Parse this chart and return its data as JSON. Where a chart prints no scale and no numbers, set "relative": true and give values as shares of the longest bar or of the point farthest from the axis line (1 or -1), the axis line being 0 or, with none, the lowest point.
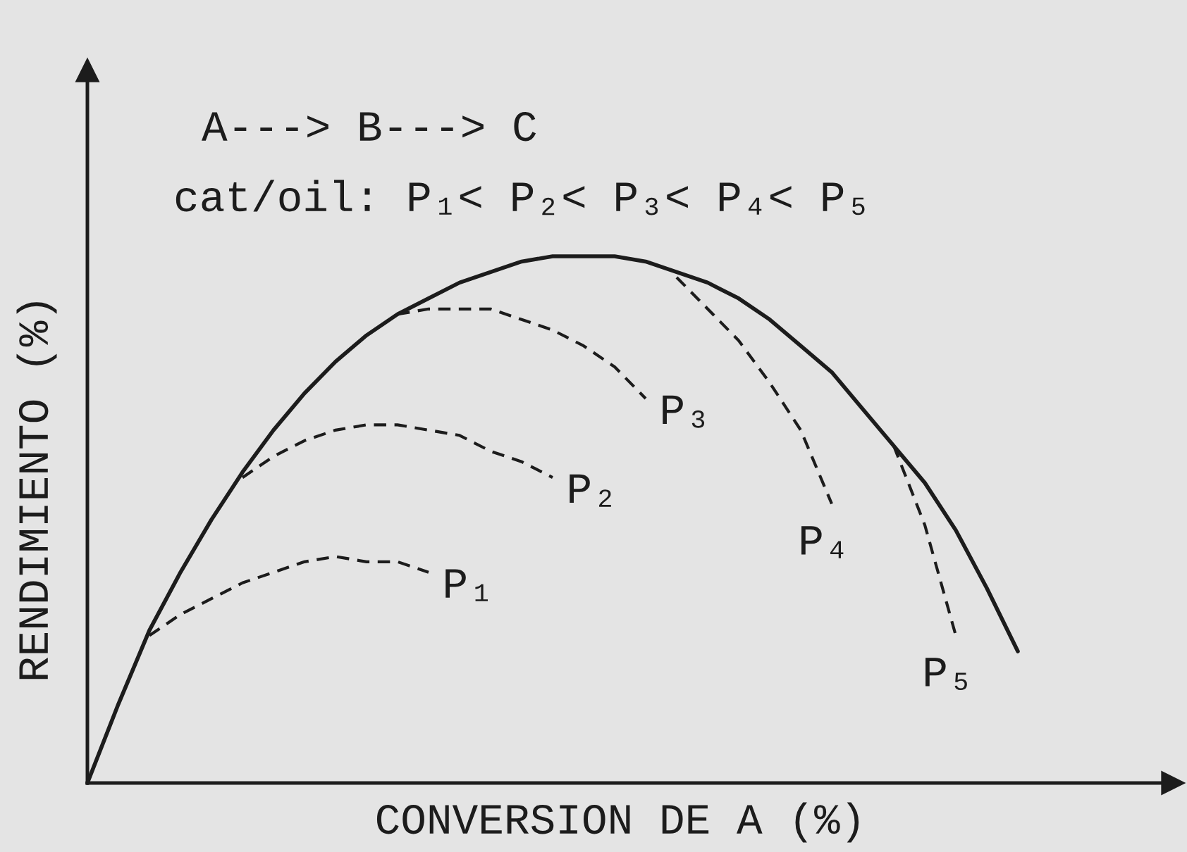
{
  "chart_data": {
    "type": "line",
    "relative": true,
    "xlabel": "CONVERSION DE A (%)",
    "ylabel": "RENDIMIENTO (%)",
    "annotations": [
      "A---> B---> C",
      "cat/oil: P₁< P₂< P₃< P₄< P₅"
    ],
    "categories": [
      null,
      null,
      null,
      null,
      null,
      null,
      null,
      null,
      null,
      null,
      null,
      null,
      null,
      null,
      null,
      null,
      null,
      null,
      null,
      null,
      null,
      null,
      null,
      null,
      null,
      null,
      null,
      null,
      null,
      null,
      null
    ],
    "series": [
      {
        "color": "#1c1c1c",
        "line_style": "solid",
        "values": [
          0,
          0.15,
          0.29,
          0.4,
          0.5,
          0.59,
          0.67,
          0.74,
          0.8,
          0.85,
          0.89,
          0.92,
          0.95,
          0.97,
          0.99,
          1,
          1,
          1,
          0.99,
          0.97,
          0.95,
          0.92,
          0.88,
          0.83,
          0.78,
          0.71,
          0.64,
          0.57,
          0.48,
          0.37,
          0.25
        ]
      },
      {
        "name": "P₁",
        "color": "#1c1c1c",
        "line_style": "dashed",
        "values": [
          null,
          null,
          0.28,
          0.32,
          0.35,
          0.38,
          0.4,
          0.42,
          0.43,
          0.42,
          0.42,
          0.4,
          null,
          null,
          null,
          null,
          null,
          null,
          null,
          null,
          null,
          null,
          null,
          null,
          null,
          null,
          null,
          null,
          null,
          null,
          null
        ]
      },
      {
        "name": "P₂",
        "color": "#1c1c1c",
        "line_style": "dashed",
        "values": [
          null,
          null,
          null,
          null,
          null,
          0.58,
          0.62,
          0.65,
          0.67,
          0.68,
          0.68,
          0.67,
          0.66,
          0.63,
          0.61,
          0.58,
          null,
          null,
          null,
          null,
          null,
          null,
          null,
          null,
          null,
          null,
          null,
          null,
          null,
          null,
          null
        ]
      },
      {
        "name": "P₃",
        "color": "#1c1c1c",
        "line_style": "dashed",
        "values": [
          null,
          null,
          null,
          null,
          null,
          null,
          null,
          null,
          null,
          null,
          0.89,
          0.9,
          0.9,
          0.9,
          0.88,
          0.86,
          0.83,
          0.79,
          0.73,
          null,
          null,
          null,
          null,
          null,
          null,
          null,
          null,
          null,
          null,
          null,
          null
        ]
      },
      {
        "name": "P₄",
        "color": "#1c1c1c",
        "line_style": "dashed",
        "values": [
          null,
          null,
          null,
          null,
          null,
          null,
          null,
          null,
          null,
          null,
          null,
          null,
          null,
          null,
          null,
          null,
          null,
          null,
          null,
          0.96,
          0.9,
          0.84,
          0.76,
          0.67,
          0.53,
          null,
          null,
          null,
          null,
          null,
          null
        ]
      },
      {
        "name": "P₅",
        "color": "#1c1c1c",
        "line_style": "dashed",
        "values": [
          null,
          null,
          null,
          null,
          null,
          null,
          null,
          null,
          null,
          null,
          null,
          null,
          null,
          null,
          null,
          null,
          null,
          null,
          null,
          null,
          null,
          null,
          null,
          null,
          null,
          null,
          0.64,
          0.49,
          0.28,
          null,
          null
        ]
      }
    ]
  }
}
